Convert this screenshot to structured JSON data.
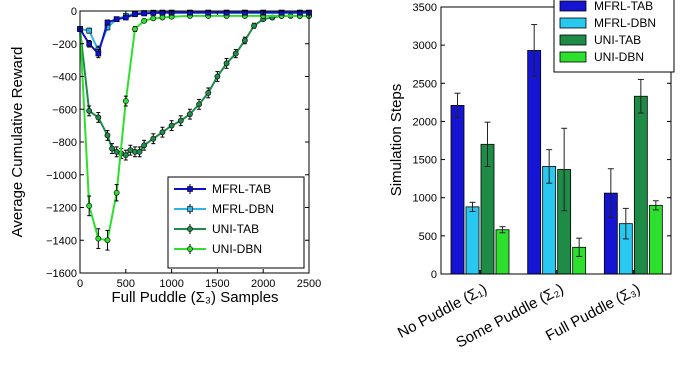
{
  "chart_data": [
    {
      "type": "line",
      "xlabel": "Full Puddle (Σ₃) Samples",
      "ylabel": "Average Cumulative Reward",
      "xlim": [
        0,
        2500
      ],
      "ylim": [
        -1600,
        0
      ],
      "xticks": [
        0,
        500,
        1000,
        1500,
        2000,
        2500
      ],
      "yticks": [
        -1600,
        -1400,
        -1200,
        -1000,
        -800,
        -600,
        -400,
        -200,
        0
      ],
      "reference_line": 0,
      "grid": false,
      "legend_position": "bottom-right",
      "series": [
        {
          "name": "MFRL-TAB",
          "color": "#1010cc",
          "marker": "square",
          "x": [
            0,
            100,
            200,
            300,
            400,
            500,
            600,
            700,
            800,
            900,
            1000,
            1200,
            1400,
            1600,
            1800,
            2000,
            2200,
            2400,
            2500
          ],
          "y": [
            -110,
            -200,
            -260,
            -70,
            -50,
            -40,
            -20,
            -15,
            -12,
            -10,
            -10,
            -10,
            -10,
            -10,
            -10,
            -10,
            -10,
            -10,
            -10
          ],
          "err": [
            10,
            20,
            25,
            15,
            10,
            10,
            5,
            5,
            5,
            5,
            5,
            5,
            5,
            5,
            5,
            5,
            5,
            5,
            5
          ]
        },
        {
          "name": "MFRL-DBN",
          "color": "#30b4e6",
          "marker": "square",
          "x": [
            0,
            100,
            200,
            300,
            400,
            500,
            600,
            700,
            800,
            900,
            1000,
            1200,
            1400,
            1600,
            1800,
            2000,
            2200,
            2400,
            2500
          ],
          "y": [
            -110,
            -120,
            -240,
            -100,
            -50,
            -30,
            -15,
            -12,
            -10,
            -10,
            -10,
            -10,
            -10,
            -10,
            -10,
            -10,
            -10,
            -10,
            -10
          ],
          "err": [
            10,
            15,
            25,
            15,
            10,
            5,
            5,
            5,
            5,
            5,
            5,
            5,
            5,
            5,
            5,
            5,
            5,
            5,
            5
          ]
        },
        {
          "name": "UNI-TAB",
          "color": "#1e8c4a",
          "marker": "circle",
          "x": [
            0,
            100,
            200,
            300,
            350,
            400,
            450,
            500,
            550,
            600,
            650,
            700,
            800,
            900,
            1000,
            1100,
            1200,
            1300,
            1400,
            1500,
            1600,
            1700,
            1800,
            1900,
            2000,
            2100,
            2200,
            2300,
            2400,
            2500
          ],
          "y": [
            -110,
            -610,
            -650,
            -760,
            -840,
            -860,
            -870,
            -880,
            -850,
            -860,
            -860,
            -820,
            -780,
            -740,
            -700,
            -670,
            -630,
            -570,
            -500,
            -400,
            -320,
            -260,
            -180,
            -90,
            -50,
            -40,
            -30,
            -30,
            -30,
            -30
          ],
          "err": [
            10,
            30,
            30,
            30,
            30,
            30,
            30,
            30,
            30,
            30,
            30,
            30,
            30,
            30,
            30,
            30,
            30,
            30,
            30,
            30,
            30,
            25,
            20,
            15,
            10,
            10,
            10,
            10,
            10,
            10
          ]
        },
        {
          "name": "UNI-DBN",
          "color": "#2ee02e",
          "marker": "circle",
          "x": [
            0,
            100,
            200,
            300,
            400,
            500,
            600,
            700,
            800,
            900,
            1000,
            1200,
            1400,
            1600,
            1800,
            2000,
            2200,
            2400,
            2500
          ],
          "y": [
            -110,
            -1190,
            -1390,
            -1400,
            -1110,
            -550,
            -110,
            -60,
            -45,
            -40,
            -35,
            -30,
            -30,
            -30,
            -30,
            -30,
            -30,
            -30,
            -30
          ],
          "err": [
            10,
            60,
            60,
            60,
            50,
            30,
            15,
            10,
            5,
            5,
            5,
            5,
            5,
            5,
            5,
            5,
            5,
            5,
            5
          ]
        }
      ]
    },
    {
      "type": "bar",
      "ylabel": "Simulation Steps",
      "ylim": [
        0,
        3500
      ],
      "yticks": [
        0,
        500,
        1000,
        1500,
        2000,
        2500,
        3000,
        3500
      ],
      "categories": [
        "No Puddle (Σ₁)",
        "Some Puddle (Σ₂)",
        "Full Puddle (Σ₃)"
      ],
      "legend_position": "top-right",
      "series": [
        {
          "name": "MFRL-TAB",
          "color": "#1414d2",
          "values": [
            2210,
            2930,
            1060
          ],
          "err": [
            160,
            340,
            320
          ]
        },
        {
          "name": "MFRL-DBN",
          "color": "#28c8f0",
          "values": [
            880,
            1410,
            660
          ],
          "err": [
            60,
            220,
            200
          ]
        },
        {
          "name": "UNI-TAB",
          "color": "#1e8c46",
          "values": [
            1700,
            1370,
            2330
          ],
          "err": [
            290,
            540,
            220
          ]
        },
        {
          "name": "UNI-DBN",
          "color": "#2ee02e",
          "values": [
            580,
            350,
            900
          ],
          "err": [
            40,
            120,
            60
          ]
        }
      ]
    }
  ]
}
